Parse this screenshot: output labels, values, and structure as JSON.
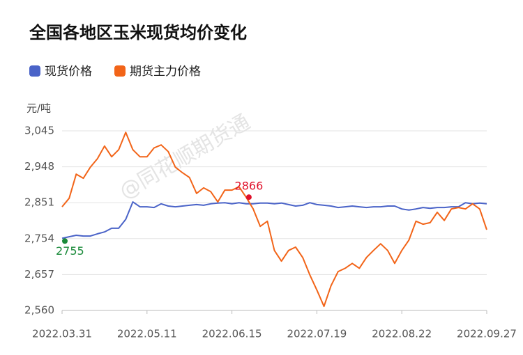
{
  "chart_data": {
    "type": "line",
    "title": "全国各地区玉米现货均价变化",
    "y_unit": "元/吨",
    "watermark": "@同花顺期货通",
    "categories": [
      "2022.03.31",
      null,
      null,
      null,
      null,
      null,
      null,
      null,
      null,
      null,
      null,
      null,
      "2022.05.11",
      null,
      null,
      null,
      null,
      null,
      null,
      null,
      null,
      null,
      null,
      null,
      "2022.06.15",
      null,
      null,
      null,
      null,
      null,
      null,
      null,
      null,
      null,
      null,
      null,
      "2022.07.19",
      null,
      null,
      null,
      null,
      null,
      null,
      null,
      null,
      null,
      null,
      null,
      "2022.08.22",
      null,
      null,
      null,
      null,
      null,
      null,
      null,
      null,
      null,
      null,
      null,
      "2022.09.27"
    ],
    "series": [
      {
        "name": "现货价格",
        "color": "#4a63c8",
        "label_color": "#1a8a3a",
        "values": [
          2755,
          2759,
          2763,
          2761,
          2761,
          2767,
          2772,
          2782,
          2782,
          2806,
          2853,
          2840,
          2840,
          2838,
          2848,
          2842,
          2840,
          2842,
          2844,
          2846,
          2844,
          2848,
          2850,
          2851,
          2848,
          2851,
          2848,
          2848,
          2850,
          2850,
          2848,
          2850,
          2846,
          2842,
          2844,
          2851,
          2846,
          2844,
          2842,
          2838,
          2840,
          2842,
          2840,
          2838,
          2840,
          2840,
          2842,
          2842,
          2834,
          2831,
          2834,
          2838,
          2836,
          2838,
          2838,
          2840,
          2840,
          2851,
          2848,
          2850,
          2848
        ],
        "value_labels": [
          "2755",
          null,
          null,
          null,
          null,
          null,
          null,
          null,
          null,
          null,
          null,
          null,
          null,
          null,
          null,
          null,
          null,
          null,
          null,
          null,
          null,
          null,
          null,
          null,
          null,
          null,
          null,
          null,
          null,
          null,
          null,
          null,
          null,
          null,
          null,
          null,
          null,
          null,
          null,
          null,
          null,
          null,
          null,
          null,
          null,
          null,
          null,
          null,
          null,
          null,
          null,
          null,
          null,
          null,
          null,
          null,
          null,
          null,
          null,
          null,
          null
        ]
      },
      {
        "name": "期货主力价格",
        "color": "#f26418",
        "label_color": "#e0102a",
        "values": [
          2840,
          2863,
          2928,
          2917,
          2947,
          2970,
          3004,
          2975,
          2994,
          3041,
          2994,
          2975,
          2975,
          2999,
          3007,
          2989,
          2947,
          2932,
          2919,
          2876,
          2891,
          2881,
          2853,
          2885,
          2885,
          2894,
          2866,
          2834,
          2787,
          2801,
          2722,
          2693,
          2722,
          2731,
          2703,
          2656,
          2615,
          2571,
          2627,
          2665,
          2674,
          2687,
          2674,
          2703,
          2722,
          2740,
          2722,
          2687,
          2722,
          2750,
          2801,
          2793,
          2797,
          2825,
          2803,
          2834,
          2838,
          2834,
          2848,
          2834,
          2778
        ],
        "value_labels": [
          null,
          null,
          null,
          null,
          null,
          null,
          null,
          null,
          null,
          null,
          null,
          null,
          null,
          null,
          null,
          null,
          null,
          null,
          null,
          null,
          null,
          null,
          null,
          null,
          null,
          null,
          "2866",
          null,
          null,
          null,
          null,
          null,
          null,
          null,
          null,
          null,
          null,
          null,
          null,
          null,
          null,
          null,
          null,
          null,
          null,
          null,
          null,
          null,
          null,
          null,
          null,
          null,
          null,
          null,
          null,
          null,
          null,
          null,
          null,
          null,
          null
        ]
      }
    ],
    "ylim": [
      2560,
      3045
    ],
    "yticks": [
      {
        "value": 2560,
        "label": "2,560"
      },
      {
        "value": 2657,
        "label": "2,657"
      },
      {
        "value": 2754,
        "label": "2,754"
      },
      {
        "value": 2851,
        "label": "2,851"
      },
      {
        "value": 2948,
        "label": "2,948"
      },
      {
        "value": 3045,
        "label": "3,045"
      }
    ],
    "grid": true
  }
}
